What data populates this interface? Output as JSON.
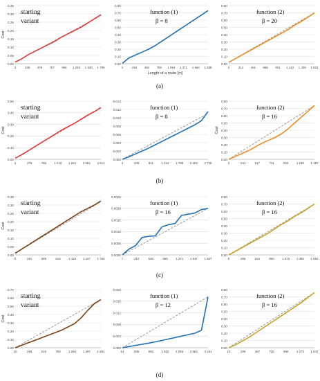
{
  "figure": {
    "row_labels": [
      "(a)",
      "(b)",
      "(c)",
      "(d)"
    ]
  },
  "chart_data": [
    {
      "row": 0,
      "col": 0,
      "type": "line",
      "title": "",
      "overlay": [
        "starting",
        "variant"
      ],
      "xlabel": "",
      "ylabel": "Cost",
      "x_ticks": [
        "3",
        "239",
        "478",
        "707",
        "966",
        "1 253",
        "1 530",
        "1 799"
      ],
      "ylim": [
        0,
        0.35
      ],
      "y_ticks": [
        "0.00",
        "0.05",
        "0.10",
        "0.15",
        "0.20",
        "0.25",
        "0.30",
        "0.35"
      ],
      "color": "#e53935",
      "ref_line": [
        0.01,
        0.29
      ],
      "series": [
        {
          "values": [
            0.01,
            0.03,
            0.055,
            0.075,
            0.095,
            0.115,
            0.135,
            0.16,
            0.18,
            0.2,
            0.22,
            0.245,
            0.27,
            0.295
          ]
        }
      ]
    },
    {
      "row": 0,
      "col": 1,
      "type": "line",
      "title": "",
      "overlay": [
        "function (1)",
        "β = 8"
      ],
      "xlabel": "Length of a route [m]",
      "ylabel": "",
      "x_ticks": [
        "2",
        "254",
        "494",
        "759",
        "1 064",
        "1 371",
        "1 664",
        "1 938"
      ],
      "ylim": [
        0,
        0.8
      ],
      "y_ticks": [
        "0.00",
        "0.10",
        "0.20",
        "0.30",
        "0.40",
        "0.50",
        "0.60",
        "0.70",
        "0.80"
      ],
      "color": "#1f6fb5",
      "ref_line": null,
      "series": [
        {
          "values": [
            0.005,
            0.08,
            0.12,
            0.16,
            0.2,
            0.25,
            0.31,
            0.37,
            0.43,
            0.49,
            0.55,
            0.61,
            0.67,
            0.73
          ]
        }
      ]
    },
    {
      "row": 0,
      "col": 2,
      "type": "line",
      "title": "",
      "overlay": [
        "function (2)",
        "β = 20"
      ],
      "xlabel": "",
      "ylabel": "",
      "x_ticks": [
        "2",
        "214",
        "461",
        "665",
        "901",
        "1 143",
        "1 406",
        "1 623"
      ],
      "ylim": [
        0,
        0.8
      ],
      "y_ticks": [
        "0.00",
        "0.10",
        "0.20",
        "0.30",
        "0.40",
        "0.50",
        "0.60",
        "0.70",
        "0.80"
      ],
      "color": "#f08a24",
      "ref_line": [
        0.02,
        0.7
      ],
      "series": [
        {
          "values": [
            0.02,
            0.07,
            0.12,
            0.17,
            0.22,
            0.27,
            0.32,
            0.37,
            0.42,
            0.47,
            0.53,
            0.58,
            0.64,
            0.7
          ]
        }
      ]
    },
    {
      "row": 1,
      "col": 0,
      "type": "line",
      "title": "",
      "overlay": [
        "starting",
        "variant"
      ],
      "xlabel": "",
      "ylabel": "Cost",
      "x_ticks": [
        "3",
        "376",
        "768",
        "1 210",
        "1 641",
        "2 062",
        "2 514"
      ],
      "ylim": [
        0,
        0.5
      ],
      "y_ticks": [
        "0.00",
        "0.10",
        "0.20",
        "0.30",
        "0.40",
        "0.50"
      ],
      "color": "#e53935",
      "ref_line": [
        0.01,
        0.44
      ],
      "series": [
        {
          "values": [
            0.01,
            0.04,
            0.075,
            0.11,
            0.145,
            0.18,
            0.215,
            0.25,
            0.28,
            0.31,
            0.345,
            0.38,
            0.41,
            0.445
          ]
        }
      ]
    },
    {
      "row": 1,
      "col": 1,
      "type": "line",
      "title": "",
      "overlay": [
        "function (1)",
        "β = 8"
      ],
      "xlabel": "",
      "ylabel": "",
      "x_ticks": [
        "3",
        "409",
        "811",
        "1 314",
        "1 788",
        "2 203",
        "2 729"
      ],
      "ylim": [
        0,
        0.014
      ],
      "y_ticks": [
        "0.000",
        "0.002",
        "0.004",
        "0.006",
        "0.008",
        "0.010",
        "0.012",
        "0.014"
      ],
      "color": "#1f6fb5",
      "ref_line": [
        0.0,
        0.011
      ],
      "series": [
        {
          "values": [
            0.0,
            0.0006,
            0.0013,
            0.002,
            0.0027,
            0.0035,
            0.0043,
            0.0051,
            0.0059,
            0.0067,
            0.0075,
            0.0083,
            0.0093,
            0.0115
          ]
        }
      ]
    },
    {
      "row": 1,
      "col": 2,
      "type": "line",
      "title": "",
      "overlay": [
        "function (2)",
        "β = 16"
      ],
      "xlabel": "",
      "ylabel": "Cost",
      "x_ticks": [
        "3",
        "241",
        "517",
        "711",
        "923",
        "1 198",
        "1 467"
      ],
      "ylim": [
        0,
        0.8
      ],
      "y_ticks": [
        "0.00",
        "0.10",
        "0.20",
        "0.30",
        "0.40",
        "0.50",
        "0.60",
        "0.70",
        "0.80"
      ],
      "color": "#f08a24",
      "ref_line": [
        0.0,
        0.74
      ],
      "series": [
        {
          "values": [
            0.0,
            0.04,
            0.08,
            0.12,
            0.17,
            0.22,
            0.26,
            0.3,
            0.35,
            0.42,
            0.5,
            0.58,
            0.66,
            0.74
          ]
        }
      ]
    },
    {
      "row": 2,
      "col": 0,
      "type": "line",
      "title": "",
      "overlay": [
        "starting",
        "variant"
      ],
      "xlabel": "",
      "ylabel": "Cost",
      "x_ticks": [
        "5",
        "281",
        "559",
        "815",
        "1 110",
        "1 447",
        "1 760"
      ],
      "ylim": [
        0,
        0.35
      ],
      "y_ticks": [
        "0.00",
        "0.05",
        "0.10",
        "0.15",
        "0.20",
        "0.25",
        "0.30",
        "0.35"
      ],
      "color": "#7b3f14",
      "ref_line": [
        0.01,
        0.32
      ],
      "series": [
        {
          "values": [
            0.01,
            0.035,
            0.06,
            0.085,
            0.11,
            0.135,
            0.16,
            0.185,
            0.21,
            0.235,
            0.26,
            0.28,
            0.3,
            0.325
          ]
        }
      ]
    },
    {
      "row": 2,
      "col": 1,
      "type": "line",
      "title": "",
      "overlay": [
        "function (1)",
        "β = 16"
      ],
      "xlabel": "",
      "ylabel": "",
      "x_ticks": [
        "7",
        "310",
        "630",
        "955",
        "1 271",
        "1 547",
        "1 827"
      ],
      "ylim": [
        0,
        0.0025
      ],
      "y_ticks": [
        "0.0000",
        "0.0005",
        "0.0010",
        "0.0015",
        "0.0020",
        "0.0025"
      ],
      "color": "#1f6fb5",
      "ref_line": [
        0.0,
        0.002
      ],
      "series": [
        {
          "values": [
            0.0,
            0.00025,
            0.0004,
            0.00075,
            0.0008,
            0.00082,
            0.0012,
            0.0013,
            0.00135,
            0.0017,
            0.00175,
            0.0018,
            0.00195,
            0.002
          ]
        }
      ]
    },
    {
      "row": 2,
      "col": 2,
      "type": "line",
      "title": "",
      "overlay": [
        "function (2)",
        "β = 16"
      ],
      "xlabel": "",
      "ylabel": "",
      "x_ticks": [
        "5",
        "256",
        "534",
        "800",
        "1 072",
        "1 380",
        "1 652"
      ],
      "ylim": [
        0,
        0.8
      ],
      "y_ticks": [
        "0.00",
        "0.10",
        "0.20",
        "0.30",
        "0.40",
        "0.50",
        "0.60",
        "0.70",
        "0.80"
      ],
      "color": "#c9a227",
      "ref_line": [
        0.0,
        0.7
      ],
      "series": [
        {
          "values": [
            0.0,
            0.05,
            0.1,
            0.15,
            0.2,
            0.25,
            0.3,
            0.36,
            0.42,
            0.47,
            0.53,
            0.58,
            0.64,
            0.7
          ]
        }
      ]
    },
    {
      "row": 3,
      "col": 0,
      "type": "line",
      "title": "",
      "overlay": [
        "starting",
        "variant"
      ],
      "xlabel": "",
      "ylabel": "Cost",
      "x_ticks": [
        "10",
        "265",
        "519",
        "793",
        "1 094",
        "1 397",
        "1 691"
      ],
      "ylim": [
        0,
        0.7
      ],
      "y_ticks": [
        "0.00",
        "0.10",
        "0.20",
        "0.30",
        "0.40",
        "0.50",
        "0.60",
        "0.70"
      ],
      "color": "#7b3f14",
      "ref_line": [
        0.0,
        0.58
      ],
      "series": [
        {
          "values": [
            0.0,
            0.03,
            0.06,
            0.09,
            0.12,
            0.15,
            0.18,
            0.21,
            0.25,
            0.29,
            0.36,
            0.45,
            0.53,
            0.58
          ]
        }
      ]
    },
    {
      "row": 3,
      "col": 1,
      "type": "line",
      "title": "",
      "overlay": [
        "function (1)",
        "β = 12"
      ],
      "xlabel": "",
      "ylabel": "",
      "x_ticks": [
        "14",
        "505",
        "992",
        "1 500",
        "2 056",
        "2 584",
        "3 161"
      ],
      "ylim": [
        0,
        0.02
      ],
      "y_ticks": [
        "0.000",
        "0.004",
        "0.008",
        "0.012",
        "0.016",
        "0.020"
      ],
      "color": "#1f6fb5",
      "ref_line": [
        0.0,
        0.0175
      ],
      "series": [
        {
          "values": [
            0.0,
            0.0004,
            0.0008,
            0.0012,
            0.0016,
            0.002,
            0.0025,
            0.003,
            0.0035,
            0.004,
            0.0045,
            0.005,
            0.006,
            0.0175
          ]
        }
      ]
    },
    {
      "row": 3,
      "col": 2,
      "type": "line",
      "title": "",
      "overlay": [
        "function (2)",
        "β = 16"
      ],
      "xlabel": "",
      "ylabel": "",
      "x_ticks": [
        "10",
        "209",
        "467",
        "735",
        "994",
        "1 273",
        "1 547"
      ],
      "ylim": [
        0,
        0.8
      ],
      "y_ticks": [
        "0.00",
        "0.10",
        "0.20",
        "0.30",
        "0.40",
        "0.50",
        "0.60",
        "0.70",
        "0.80"
      ],
      "color": "#c9a227",
      "ref_line": [
        0.0,
        0.76
      ],
      "series": [
        {
          "values": [
            0.0,
            0.04,
            0.09,
            0.14,
            0.2,
            0.26,
            0.32,
            0.38,
            0.44,
            0.5,
            0.56,
            0.62,
            0.69,
            0.76
          ]
        }
      ]
    }
  ]
}
